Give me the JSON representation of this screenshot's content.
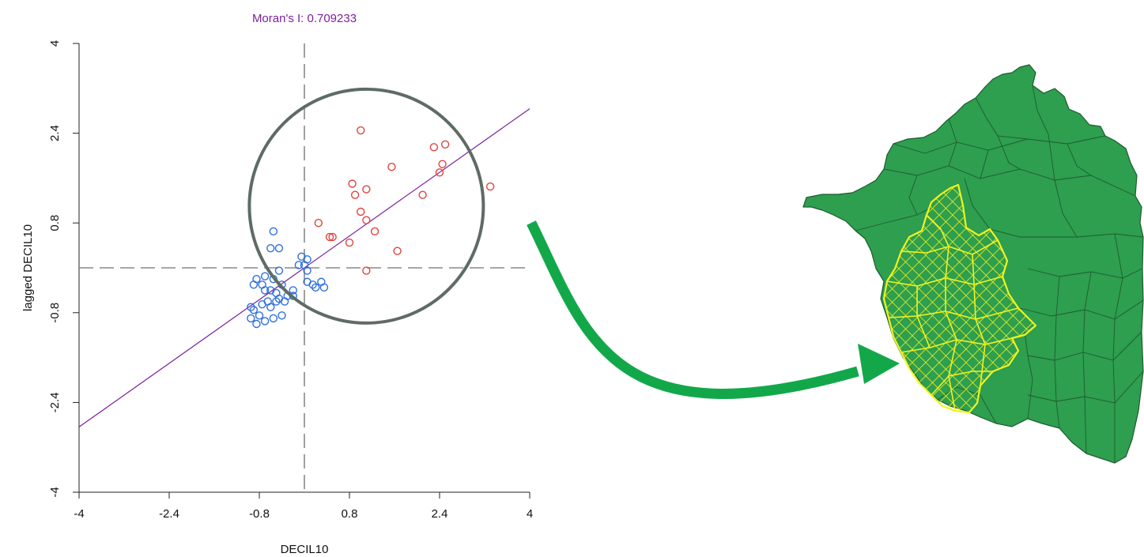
{
  "chart_data": {
    "type": "scatter",
    "title": "Moran's I: 0.709233",
    "xlabel": "DECIL10",
    "ylabel": "lagged DECIL10",
    "xlim": [
      -4,
      4
    ],
    "ylim": [
      -4,
      4
    ],
    "x_ticks": [
      "-4",
      "-2.4",
      "-0.8",
      "0.8",
      "2.4",
      "4"
    ],
    "y_ticks": [
      "-4",
      "-2.4",
      "-0.8",
      "0.8",
      "2.4",
      "4"
    ],
    "tick_values": [
      -4,
      -2.4,
      -0.8,
      0.8,
      2.4,
      4
    ],
    "reference_lines": {
      "x": 0,
      "y": 0
    },
    "regression": {
      "slope": 0.709233,
      "intercept": 0
    },
    "grid": false,
    "series": [
      {
        "points": [
          [
            1.0,
            2.45
          ],
          [
            2.5,
            2.2
          ],
          [
            2.3,
            2.15
          ],
          [
            1.55,
            1.8
          ],
          [
            2.45,
            1.85
          ],
          [
            2.4,
            1.7
          ],
          [
            3.3,
            1.45
          ],
          [
            0.85,
            1.5
          ],
          [
            1.1,
            1.4
          ],
          [
            0.9,
            1.3
          ],
          [
            2.1,
            1.3
          ],
          [
            1.0,
            1.0
          ],
          [
            0.25,
            0.8
          ],
          [
            1.1,
            0.85
          ],
          [
            1.25,
            0.65
          ],
          [
            0.45,
            0.55
          ],
          [
            0.5,
            0.55
          ],
          [
            0.8,
            0.45
          ],
          [
            1.65,
            0.3
          ],
          [
            1.1,
            -0.05
          ]
        ],
        "color": "#e0443e"
      },
      {
        "points": [
          [
            -0.55,
            0.65
          ],
          [
            -0.45,
            0.35
          ],
          [
            -0.6,
            0.35
          ],
          [
            -0.05,
            0.2
          ],
          [
            0.05,
            0.15
          ],
          [
            -0.1,
            0.05
          ],
          [
            0.0,
            0.05
          ],
          [
            0.05,
            -0.05
          ],
          [
            -0.45,
            -0.05
          ],
          [
            -0.7,
            -0.15
          ],
          [
            -0.55,
            -0.2
          ],
          [
            -0.4,
            -0.3
          ],
          [
            0.05,
            -0.25
          ],
          [
            0.3,
            -0.25
          ],
          [
            0.15,
            -0.3
          ],
          [
            0.35,
            -0.35
          ],
          [
            0.2,
            -0.35
          ],
          [
            -0.2,
            -0.5
          ],
          [
            -0.85,
            -0.2
          ],
          [
            -0.9,
            -0.3
          ],
          [
            -0.75,
            -0.3
          ],
          [
            -0.7,
            -0.4
          ],
          [
            -0.6,
            -0.4
          ],
          [
            -0.5,
            -0.45
          ],
          [
            -0.45,
            -0.55
          ],
          [
            -0.35,
            -0.6
          ],
          [
            -0.65,
            -0.6
          ],
          [
            -0.75,
            -0.65
          ],
          [
            -0.6,
            -0.7
          ],
          [
            -0.9,
            -0.75
          ],
          [
            -0.8,
            -0.85
          ],
          [
            -0.95,
            -0.9
          ],
          [
            -0.85,
            -1.0
          ],
          [
            -0.7,
            -0.95
          ],
          [
            -0.55,
            -0.9
          ],
          [
            -0.4,
            -0.85
          ],
          [
            -0.95,
            -0.7
          ],
          [
            -0.2,
            -0.4
          ],
          [
            -0.3,
            -0.5
          ],
          [
            -0.5,
            -0.6
          ]
        ],
        "color": "#2f6fe0"
      }
    ]
  },
  "highlight": {
    "circle_center": [
      1.1,
      1.1
    ],
    "outline_color": "#5f6b65"
  },
  "arrow": {
    "color": "#12a84a"
  },
  "map": {
    "fill": "#2e9e4f",
    "border": "#1e5c2e",
    "highlight_fill": "#2e9e4f",
    "highlight_border": "#f2f21e"
  }
}
